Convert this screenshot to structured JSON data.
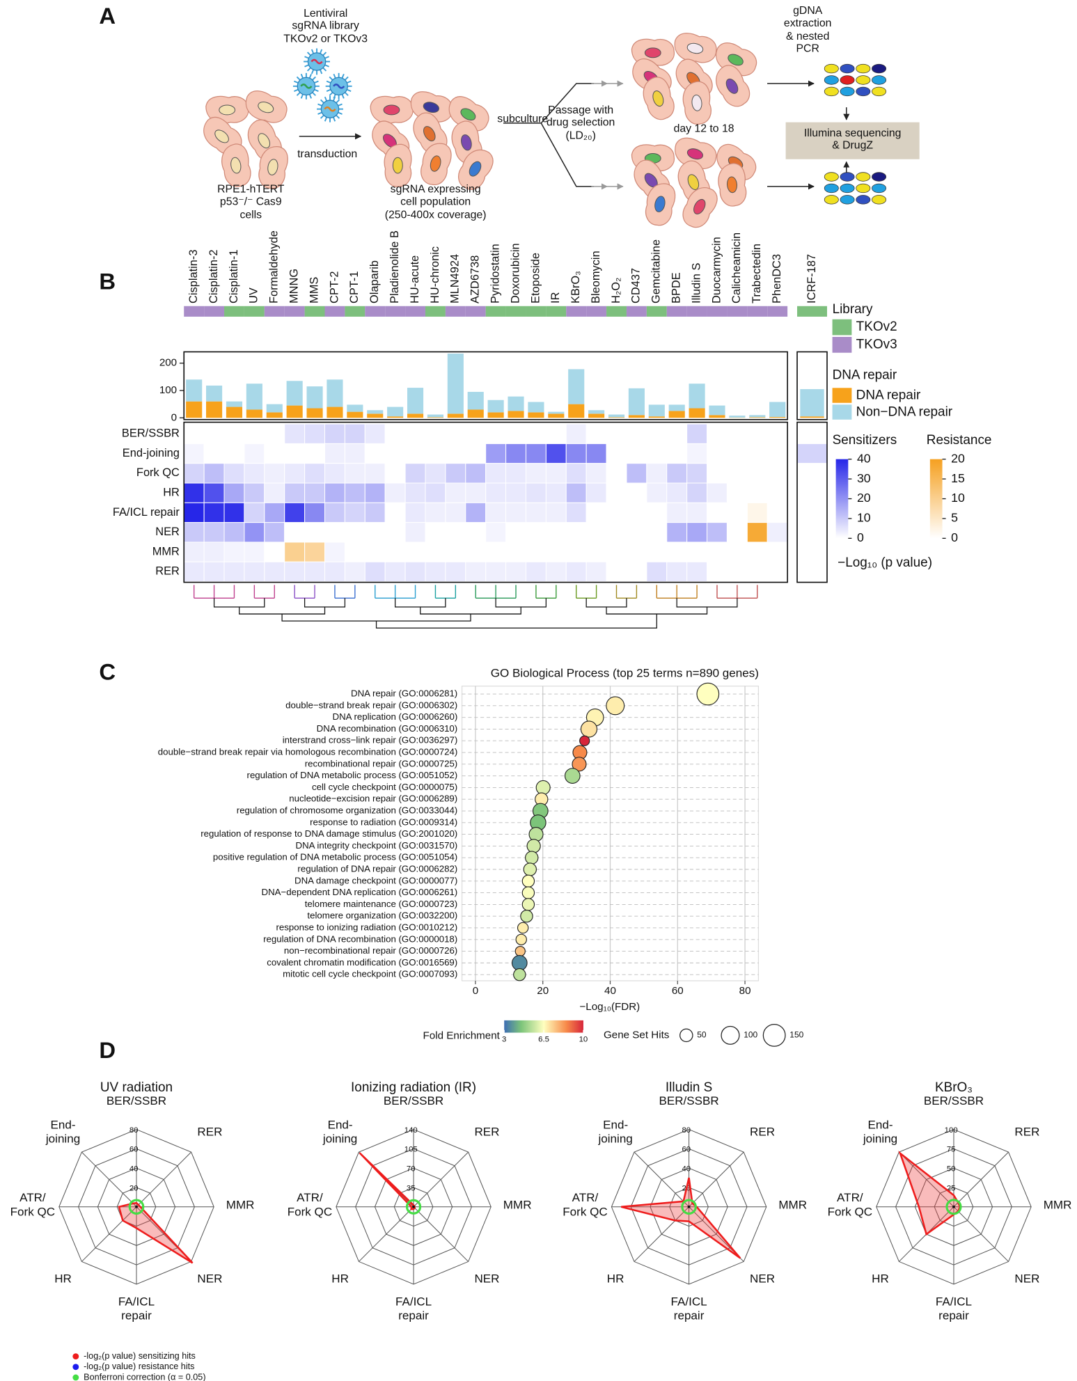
{
  "panel_labels": [
    "A",
    "B",
    "C",
    "D"
  ],
  "diagram": {
    "library": "Lentiviral\nsgRNA library\nTKOv2 or TKOv3",
    "transduction": "transduction",
    "cells": "RPE1-hTERT\np53⁻/⁻ Cas9\ncells",
    "population": "sgRNA expressing\ncell population\n(250-400x coverage)",
    "subculture": "subculture",
    "selection": "Passage with\ndrug selection\n(LD₂₀)",
    "days": "day 12 to 18",
    "extraction": "gDNA\nextraction\n& nested\nPCR",
    "sequencing": "Illumina sequencing\n& DrugZ"
  },
  "chart_data": [
    {
      "type": "bar",
      "stacked": true,
      "categories": [
        "Cisplatin-3",
        "Cisplatin-2",
        "Cisplatin-1",
        "UV",
        "Formaldehyde",
        "MNNG",
        "MMS",
        "CPT-2",
        "CPT-1",
        "Olaparib",
        "Pladienolide B",
        "HU-acute",
        "HU-chronic",
        "MLN4924",
        "AZD6738",
        "Pyridostatin",
        "Doxorubicin",
        "Etoposide",
        "IR",
        "KBrO₃",
        "Bleomycin",
        "H₂O₂",
        "CD437",
        "Gemcitabine",
        "BPDE",
        "Illudin S",
        "Duocarmycin",
        "Calicheamicin",
        "Trabectedin",
        "PhenDC3",
        "ICRF-187"
      ],
      "library_title": "Library",
      "library_legend": [
        {
          "name": "TKOv2",
          "color": "#7dbf7d"
        },
        {
          "name": "TKOv3",
          "color": "#a98cc8"
        }
      ],
      "library": [
        "TKOv3",
        "TKOv3",
        "TKOv2",
        "TKOv2",
        "TKOv3",
        "TKOv3",
        "TKOv2",
        "TKOv3",
        "TKOv2",
        "TKOv3",
        "TKOv3",
        "TKOv3",
        "TKOv2",
        "TKOv3",
        "TKOv3",
        "TKOv2",
        "TKOv2",
        "TKOv2",
        "TKOv2",
        "TKOv3",
        "TKOv3",
        "TKOv2",
        "TKOv3",
        "TKOv2",
        "TKOv3",
        "TKOv3",
        "TKOv3",
        "TKOv3",
        "TKOv3",
        "TKOv3",
        "TKOv2"
      ],
      "legend_title": "DNA repair",
      "series": [
        {
          "name": "DNA repair",
          "color": "#f7a21b",
          "values": [
            60,
            60,
            40,
            30,
            20,
            45,
            35,
            40,
            22,
            15,
            5,
            15,
            2,
            15,
            30,
            20,
            25,
            20,
            15,
            50,
            15,
            2,
            10,
            5,
            25,
            35,
            10,
            1,
            2,
            3,
            5
          ]
        },
        {
          "name": "Non−DNA repair",
          "color": "#a8d8e8",
          "values": [
            80,
            58,
            20,
            95,
            30,
            90,
            80,
            100,
            26,
            13,
            35,
            95,
            10,
            220,
            65,
            45,
            53,
            38,
            7,
            128,
            13,
            10,
            98,
            43,
            23,
            90,
            35,
            7,
            8,
            55,
            100
          ]
        }
      ],
      "ylim": [
        0,
        235
      ],
      "yticks": [
        0,
        100,
        200
      ]
    },
    {
      "type": "heatmap",
      "rows": [
        "BER/SSBR",
        "End-joining",
        "Fork QC",
        "HR",
        "FA/ICL repair",
        "NER",
        "MMR",
        "RER"
      ],
      "values": [
        [
          0,
          0,
          0,
          0,
          0,
          5,
          6,
          8,
          8,
          4,
          0,
          0,
          0,
          0,
          0,
          0,
          0,
          0,
          0,
          3,
          0,
          0,
          0,
          0,
          0,
          8,
          0,
          0,
          0,
          0,
          0
        ],
        [
          2,
          0,
          0,
          2,
          0,
          0,
          0,
          3,
          3,
          0,
          0,
          0,
          0,
          0,
          0,
          18,
          22,
          22,
          32,
          22,
          22,
          0,
          0,
          0,
          0,
          2,
          0,
          0,
          0,
          0,
          8
        ],
        [
          8,
          12,
          6,
          4,
          3,
          4,
          6,
          4,
          3,
          3,
          0,
          8,
          5,
          10,
          12,
          4,
          4,
          3,
          3,
          6,
          3,
          0,
          12,
          3,
          10,
          8,
          0,
          0,
          0,
          0,
          0
        ],
        [
          38,
          32,
          16,
          10,
          3,
          10,
          10,
          14,
          12,
          14,
          3,
          5,
          6,
          3,
          3,
          4,
          4,
          5,
          4,
          12,
          4,
          0,
          0,
          3,
          4,
          8,
          3,
          0,
          0,
          0,
          0
        ],
        [
          40,
          38,
          38,
          8,
          16,
          35,
          22,
          10,
          8,
          10,
          0,
          4,
          3,
          3,
          14,
          3,
          3,
          3,
          3,
          6,
          0,
          0,
          0,
          0,
          3,
          3,
          0,
          0,
          0,
          0,
          0
        ],
        [
          10,
          10,
          12,
          20,
          12,
          0,
          0,
          0,
          0,
          0,
          0,
          3,
          0,
          0,
          0,
          2,
          0,
          0,
          0,
          0,
          0,
          0,
          0,
          0,
          14,
          16,
          12,
          0,
          0,
          3,
          0
        ],
        [
          3,
          3,
          2,
          2,
          0,
          0,
          0,
          2,
          0,
          0,
          0,
          0,
          0,
          0,
          0,
          0,
          0,
          0,
          0,
          0,
          0,
          0,
          0,
          0,
          0,
          0,
          0,
          0,
          0,
          0,
          0
        ],
        [
          4,
          4,
          4,
          4,
          4,
          4,
          4,
          4,
          3,
          6,
          4,
          5,
          4,
          4,
          3,
          3,
          3,
          4,
          3,
          4,
          3,
          0,
          0,
          6,
          4,
          4,
          0,
          0,
          0,
          0,
          0
        ]
      ],
      "resistance": [
        [
          0,
          0,
          0,
          0,
          0,
          0,
          0,
          0,
          0,
          0,
          0,
          0,
          0,
          0,
          0,
          0,
          0,
          0,
          0,
          0,
          0,
          0,
          0,
          0,
          0,
          0,
          0,
          0,
          0,
          0,
          0
        ],
        [
          0,
          0,
          0,
          0,
          0,
          0,
          0,
          0,
          0,
          0,
          0,
          0,
          0,
          0,
          0,
          0,
          0,
          0,
          0,
          0,
          0,
          0,
          0,
          0,
          0,
          0,
          0,
          0,
          0,
          0,
          0
        ],
        [
          0,
          0,
          0,
          0,
          0,
          0,
          0,
          0,
          0,
          0,
          0,
          0,
          0,
          0,
          0,
          0,
          0,
          0,
          0,
          0,
          0,
          0,
          0,
          0,
          0,
          0,
          0,
          0,
          0,
          0,
          0
        ],
        [
          0,
          0,
          0,
          0,
          0,
          0,
          0,
          0,
          0,
          0,
          0,
          0,
          0,
          0,
          0,
          0,
          0,
          0,
          0,
          0,
          0,
          0,
          0,
          0,
          0,
          0,
          0,
          0,
          0,
          0,
          0
        ],
        [
          0,
          0,
          0,
          0,
          0,
          0,
          0,
          0,
          0,
          0,
          0,
          0,
          0,
          0,
          0,
          0,
          0,
          0,
          0,
          0,
          0,
          0,
          0,
          0,
          0,
          0,
          0,
          0,
          2,
          0,
          0
        ],
        [
          0,
          0,
          0,
          0,
          0,
          0,
          0,
          0,
          0,
          0,
          0,
          0,
          0,
          0,
          0,
          0,
          0,
          0,
          0,
          0,
          0,
          0,
          0,
          0,
          0,
          0,
          0,
          0,
          18,
          0,
          0
        ],
        [
          0,
          0,
          0,
          0,
          0,
          10,
          9,
          0,
          0,
          0,
          0,
          0,
          0,
          0,
          0,
          0,
          0,
          0,
          0,
          0,
          0,
          0,
          0,
          0,
          0,
          0,
          0,
          0,
          0,
          0,
          0
        ],
        [
          0,
          0,
          0,
          0,
          0,
          0,
          0,
          0,
          0,
          0,
          0,
          0,
          0,
          0,
          0,
          0,
          0,
          0,
          0,
          0,
          0,
          0,
          0,
          0,
          0,
          0,
          0,
          0,
          0,
          0,
          0
        ]
      ],
      "sensitizer_scale": {
        "title": "Sensitizers",
        "color": "#2626e8",
        "lim": [
          0,
          40
        ],
        "ticks": [
          0,
          10,
          20,
          30,
          40
        ]
      },
      "resistance_scale": {
        "title": "Resistance",
        "color": "#f5a020",
        "lim": [
          0,
          20
        ],
        "ticks": [
          0,
          5,
          10,
          15,
          20
        ]
      },
      "colorbar_label": "−Log₁₀ (p value)"
    },
    {
      "type": "dot",
      "title": "GO Biological Process (top 25 terms n=890 genes)",
      "categories": [
        "DNA repair (GO:0006281)",
        "double−strand break repair (GO:0006302)",
        "DNA replication (GO:0006260)",
        "DNA recombination (GO:0006310)",
        "interstrand cross−link repair (GO:0036297)",
        "double−strand break repair via homologous recombination (GO:0000724)",
        "recombinational repair (GO:0000725)",
        "regulation of DNA metabolic process (GO:0051052)",
        "cell cycle checkpoint (GO:0000075)",
        "nucleotide−excision repair (GO:0006289)",
        "regulation of chromosome organization (GO:0033044)",
        "response to radiation (GO:0009314)",
        "regulation of response to DNA damage stimulus (GO:2001020)",
        "DNA integrity checkpoint (GO:0031570)",
        "positive regulation of DNA metabolic process (GO:0051054)",
        "regulation of DNA repair (GO:0006282)",
        "DNA damage checkpoint (GO:0000077)",
        "DNA−dependent DNA replication (GO:0006261)",
        "telomere maintenance (GO:0000723)",
        "telomere organization (GO:0032200)",
        "response to ionizing radiation (GO:0010212)",
        "regulation of DNA recombination (GO:0000018)",
        "non−recombinational repair (GO:0000726)",
        "covalent chromatin modification (GO:0016569)",
        "mitotic cell cycle checkpoint (GO:0007093)"
      ],
      "values": [
        69,
        41.5,
        35.5,
        33.7,
        32.4,
        31,
        30.8,
        28.8,
        20.1,
        19.6,
        19.3,
        18.6,
        18,
        17.3,
        16.7,
        16.2,
        15.7,
        15.7,
        15.7,
        15.2,
        14.1,
        13.6,
        13.3,
        13.1,
        13.1
      ],
      "fold_enrichment": [
        6.5,
        6.8,
        6.7,
        7,
        10,
        8.5,
        8.3,
        5.2,
        6,
        6.8,
        4.6,
        4.5,
        5.5,
        5.8,
        5.8,
        6,
        6.5,
        6.4,
        6.2,
        5.8,
        6.8,
        6.8,
        7.5,
        3.5,
        5.5
      ],
      "gene_set_hits": [
        150,
        100,
        90,
        80,
        30,
        60,
        60,
        70,
        60,
        50,
        70,
        75,
        60,
        55,
        50,
        50,
        45,
        45,
        45,
        45,
        35,
        35,
        30,
        70,
        45
      ],
      "xlim": [
        -4,
        84
      ],
      "xticks": [
        0,
        20,
        40,
        60,
        80
      ],
      "xlabel": "−Log₁₀(FDR)",
      "color_legend_title": "Fold Enrichment",
      "color_lim": [
        3,
        10
      ],
      "color_ticks": [
        3,
        6.5,
        10
      ],
      "size_legend_title": "Gene Set Hits",
      "size_ticks": [
        50,
        100,
        150
      ]
    },
    {
      "type": "radar",
      "title": "UV radiation",
      "categories": [
        "BER/SSBR",
        "RER",
        "MMR",
        "NER",
        "FA/ICL\nrepair",
        "HR",
        "ATR/\nFork QC",
        "End-\njoining"
      ],
      "values": [
        4,
        3,
        4,
        82,
        22,
        20,
        18,
        5
      ],
      "threshold": 7,
      "ylim": [
        0,
        80
      ],
      "yticks": [
        20,
        40,
        60,
        80
      ]
    },
    {
      "type": "radar",
      "title": "Ionizing radiation (IR)",
      "categories": [
        "BER/SSBR",
        "RER",
        "MMR",
        "NER",
        "FA/ICL\nrepair",
        "HR",
        "ATR/\nFork QC",
        "End-\njoining"
      ],
      "values": [
        3,
        2,
        2,
        3,
        4,
        6,
        4,
        138
      ],
      "threshold": 12,
      "ylim": [
        0,
        140
      ],
      "yticks": [
        35,
        70,
        105,
        140
      ]
    },
    {
      "type": "radar",
      "title": "Illudin S",
      "categories": [
        "BER/SSBR",
        "RER",
        "MMR",
        "NER",
        "FA/ICL\nrepair",
        "HR",
        "ATR/\nFork QC",
        "End-\njoining"
      ],
      "values": [
        30,
        5,
        8,
        75,
        15,
        20,
        70,
        8
      ],
      "threshold": 7,
      "ylim": [
        0,
        80
      ],
      "yticks": [
        20,
        40,
        60,
        80
      ]
    },
    {
      "type": "radar",
      "title": "KBrO₃",
      "categories": [
        "BER/SSBR",
        "RER",
        "MMR",
        "NER",
        "FA/ICL\nrepair",
        "HR",
        "ATR/\nFork QC",
        "End-\njoining"
      ],
      "values": [
        15,
        8,
        8,
        8,
        10,
        50,
        45,
        98
      ],
      "threshold": 9,
      "ylim": [
        0,
        100
      ],
      "yticks": [
        25,
        50,
        75,
        100
      ]
    }
  ],
  "radar_legend": [
    {
      "name": "-log₂(p value) sensitizing hits",
      "color": "#ee1c1c"
    },
    {
      "name": "-log₂(p value) resistance hits",
      "color": "#1c1cee"
    },
    {
      "name": "Bonferroni correction (α = 0.05)",
      "color": "#44dd44"
    }
  ]
}
